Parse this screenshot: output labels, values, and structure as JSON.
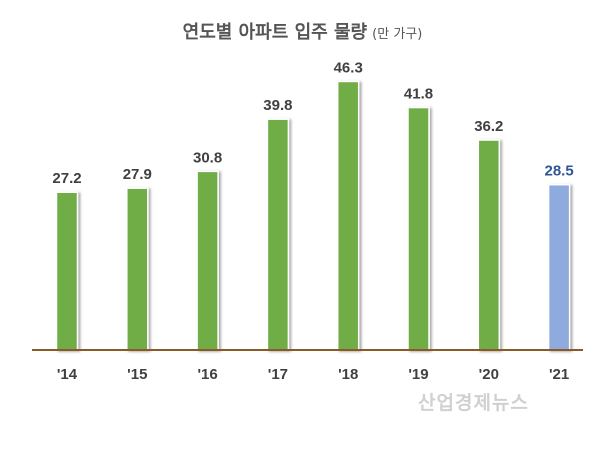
{
  "chart_data": {
    "type": "bar",
    "title": "연도별 아파트 입주 물량",
    "subtitle": "(만 가구)",
    "categories": [
      "'14",
      "'15",
      "'16",
      "'17",
      "'18",
      "'19",
      "'20",
      "'21"
    ],
    "values": [
      27.2,
      27.9,
      30.8,
      39.8,
      46.3,
      41.8,
      36.2,
      28.5
    ],
    "ylim": [
      0,
      50
    ],
    "grid": false,
    "legend": "none",
    "colors": {
      "bar": "#70ad47",
      "highlight_bar": "#8faadc",
      "axis": "#8b5a2b",
      "label": "#404040",
      "highlight_label": "#2f5597"
    },
    "highlight_index": 7
  },
  "watermark": "산업경제뉴스"
}
